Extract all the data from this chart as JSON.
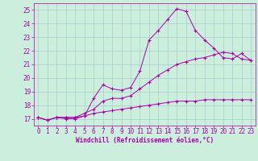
{
  "xlabel": "Windchill (Refroidissement éolien,°C)",
  "background_color": "#cceedd",
  "grid_color": "#aacccc",
  "line_color": "#aa00aa",
  "xlim": [
    -0.5,
    23.5
  ],
  "ylim": [
    16.5,
    25.5
  ],
  "yticks": [
    17,
    18,
    19,
    20,
    21,
    22,
    23,
    24,
    25
  ],
  "xticks": [
    0,
    1,
    2,
    3,
    4,
    5,
    6,
    7,
    8,
    9,
    10,
    11,
    12,
    13,
    14,
    15,
    16,
    17,
    18,
    19,
    20,
    21,
    22,
    23
  ],
  "curve1_x": [
    0,
    1,
    2,
    3,
    4,
    5,
    6,
    7,
    8,
    9,
    10,
    11,
    12,
    13,
    14,
    15,
    16,
    17,
    18,
    19,
    20,
    21,
    22,
    23
  ],
  "curve1_y": [
    17.1,
    16.9,
    17.1,
    17.0,
    17.0,
    17.2,
    18.5,
    19.5,
    19.2,
    19.1,
    19.3,
    20.5,
    22.8,
    23.5,
    24.3,
    25.1,
    24.9,
    23.5,
    22.8,
    22.2,
    21.5,
    21.4,
    21.8,
    21.3
  ],
  "curve2_x": [
    0,
    1,
    2,
    3,
    4,
    5,
    6,
    7,
    8,
    9,
    10,
    11,
    12,
    13,
    14,
    15,
    16,
    17,
    18,
    19,
    20,
    21,
    22,
    23
  ],
  "curve2_y": [
    17.1,
    16.9,
    17.1,
    17.1,
    17.1,
    17.4,
    17.7,
    18.3,
    18.5,
    18.5,
    18.7,
    19.2,
    19.7,
    20.2,
    20.6,
    21.0,
    21.2,
    21.4,
    21.5,
    21.7,
    21.9,
    21.8,
    21.4,
    21.3
  ],
  "curve3_x": [
    0,
    1,
    2,
    3,
    4,
    5,
    6,
    7,
    8,
    9,
    10,
    11,
    12,
    13,
    14,
    15,
    16,
    17,
    18,
    19,
    20,
    21,
    22,
    23
  ],
  "curve3_y": [
    17.1,
    16.9,
    17.1,
    17.1,
    17.1,
    17.2,
    17.4,
    17.5,
    17.6,
    17.7,
    17.8,
    17.9,
    18.0,
    18.1,
    18.2,
    18.3,
    18.3,
    18.3,
    18.4,
    18.4,
    18.4,
    18.4,
    18.4,
    18.4
  ],
  "xlabel_fontsize": 5.5,
  "tick_fontsize": 5.5
}
